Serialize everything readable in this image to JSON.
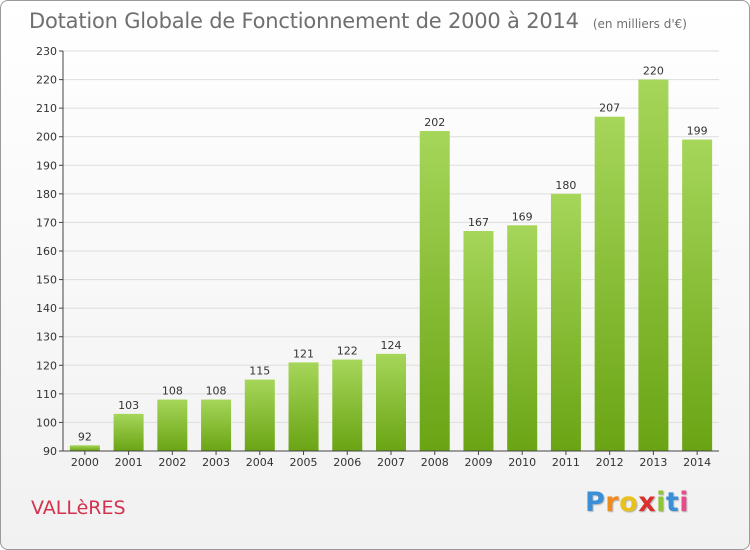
{
  "title": "Dotation Globale de Fonctionnement de 2000 à 2014",
  "unit": "(en milliers d'€)",
  "commune": "VALLèRES",
  "logo": {
    "letters": [
      "P",
      "r",
      "o",
      "x",
      "i",
      "t",
      "i"
    ],
    "colors": [
      "#3a8fd6",
      "#f08a1c",
      "#e8c21a",
      "#d9302f",
      "#8fc33a",
      "#3a8fd6",
      "#e84a8c"
    ]
  },
  "colors": {
    "bar_light": "#a6d65a",
    "bar_dark": "#6aa414",
    "grid": "#dddddd",
    "axis": "#444444",
    "text": "#333333"
  },
  "chart_data": {
    "type": "bar",
    "categories": [
      "2000",
      "2001",
      "2002",
      "2003",
      "2004",
      "2005",
      "2006",
      "2007",
      "2008",
      "2009",
      "2010",
      "2011",
      "2012",
      "2013",
      "2014"
    ],
    "values": [
      92,
      103,
      108,
      108,
      115,
      121,
      122,
      124,
      202,
      167,
      169,
      180,
      207,
      220,
      199
    ],
    "ylim": [
      90,
      230
    ],
    "yticks": [
      90,
      100,
      110,
      120,
      130,
      140,
      150,
      160,
      170,
      180,
      190,
      200,
      210,
      220,
      230
    ],
    "grid": true,
    "data_labels": true
  }
}
